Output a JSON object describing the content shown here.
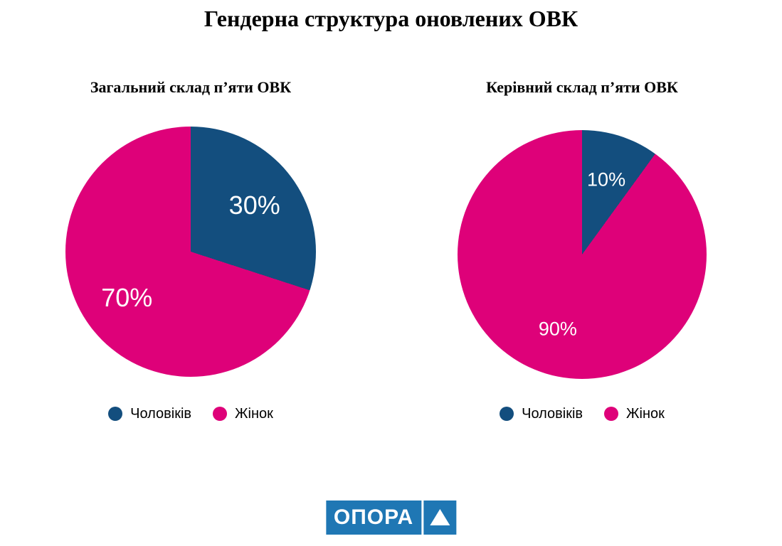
{
  "title": "Гендерна структура оновлених ОВК",
  "colors": {
    "men": "#134E7E",
    "women": "#DE0179",
    "slice_label": "#FFFFFF",
    "text": "#000000",
    "background": "#FFFFFF"
  },
  "chart_data": [
    {
      "type": "pie",
      "title": "Загальний склад п’яти ОВК",
      "categories": [
        "Чоловіків",
        "Жінок"
      ],
      "values": [
        30,
        70
      ],
      "labels": [
        "30%",
        "70%"
      ],
      "colors": [
        "#134E7E",
        "#DE0179"
      ],
      "start_angle_deg": 0,
      "direction": "clockwise",
      "legend_position": "bottom"
    },
    {
      "type": "pie",
      "title": "Керівний склад п’яти ОВК",
      "categories": [
        "Чоловіків",
        "Жінок"
      ],
      "values": [
        10,
        90
      ],
      "labels": [
        "10%",
        "90%"
      ],
      "colors": [
        "#134E7E",
        "#DE0179"
      ],
      "start_angle_deg": 0,
      "direction": "clockwise",
      "legend_position": "bottom"
    }
  ],
  "branding": {
    "logo_text": "ОПОРА",
    "logo_color": "#1F77B4",
    "triangle_icon": "white-up-triangle"
  }
}
